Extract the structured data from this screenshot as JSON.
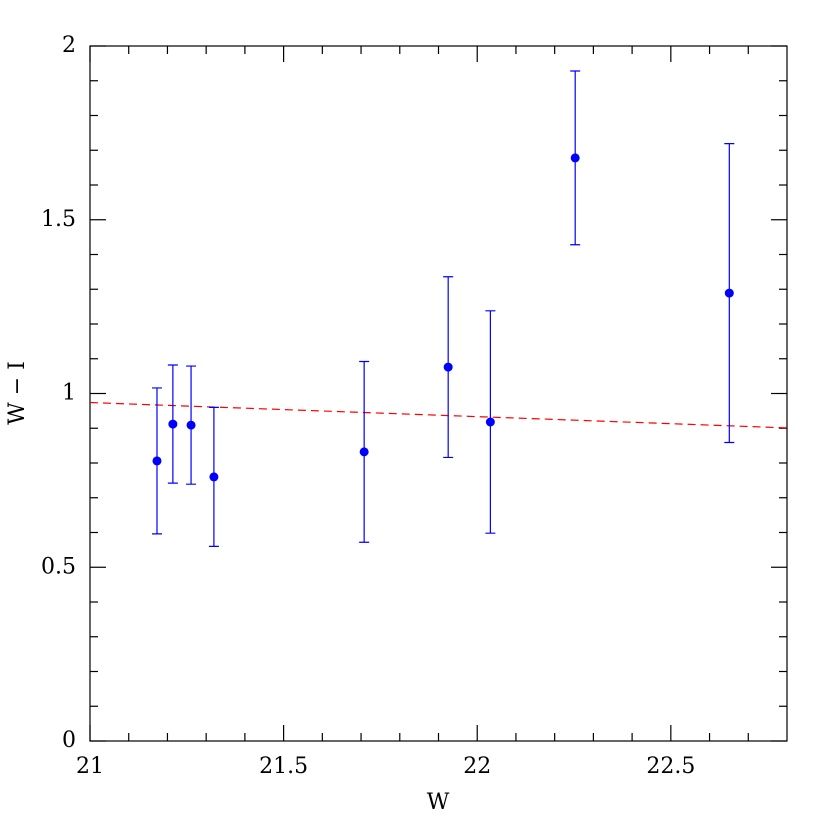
{
  "chart_data": {
    "type": "scatter",
    "xlabel": "W",
    "ylabel": "W − I",
    "xlim": [
      21,
      22.8
    ],
    "ylim": [
      0,
      2
    ],
    "xticks": [
      21,
      21.5,
      22,
      22.5
    ],
    "yticks": [
      0,
      0.5,
      1,
      1.5,
      2
    ],
    "xticks_minor": [
      21.1,
      21.2,
      21.3,
      21.4,
      21.6,
      21.7,
      21.8,
      21.9,
      22.1,
      22.2,
      22.3,
      22.4,
      22.6,
      22.7
    ],
    "yticks_minor": [
      0.1,
      0.2,
      0.3,
      0.4,
      0.6,
      0.7,
      0.8,
      0.9,
      1.1,
      1.2,
      1.3,
      1.4,
      1.6,
      1.7,
      1.8,
      1.9
    ],
    "series": [
      {
        "color": "#0000ff",
        "x": [
          21.173,
          21.214,
          21.261,
          21.32,
          21.708,
          21.925,
          22.034,
          22.253,
          22.651
        ],
        "values": [
          0.806,
          0.912,
          0.909,
          0.76,
          0.832,
          1.076,
          0.918,
          1.678,
          1.289
        ],
        "errors": [
          0.21,
          0.17,
          0.17,
          0.2,
          0.26,
          0.26,
          0.32,
          0.25,
          0.43
        ]
      }
    ],
    "fit_line": {
      "color": "#ff0000",
      "dashed": true,
      "x": [
        21,
        22.8
      ],
      "values": [
        0.974,
        0.901
      ]
    }
  }
}
